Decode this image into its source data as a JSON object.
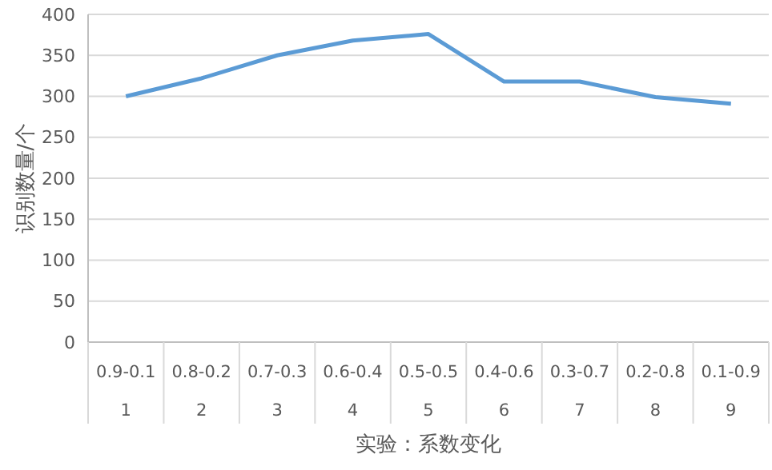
{
  "chart_data": {
    "type": "line",
    "xlabel": "实验：系数变化",
    "ylabel": "识别数量/个",
    "categories": [
      "0.9-0.1",
      "0.8-0.2",
      "0.7-0.3",
      "0.6-0.4",
      "0.5-0.5",
      "0.4-0.6",
      "0.3-0.7",
      "0.2-0.8",
      "0.1-0.9"
    ],
    "series": [
      {
        "color": "#5b9bd5",
        "values": [
          300,
          322,
          350,
          368,
          376,
          318,
          318,
          299,
          291
        ]
      }
    ],
    "ylim": [
      0,
      400
    ],
    "yticks": [
      0,
      50,
      100,
      150,
      200,
      250,
      300,
      350,
      400
    ],
    "grid": "y",
    "marker": "none",
    "line_style": "solid",
    "annotations": [
      "1",
      "2",
      "3",
      "4",
      "5",
      "6",
      "7",
      "8",
      "9"
    ]
  }
}
